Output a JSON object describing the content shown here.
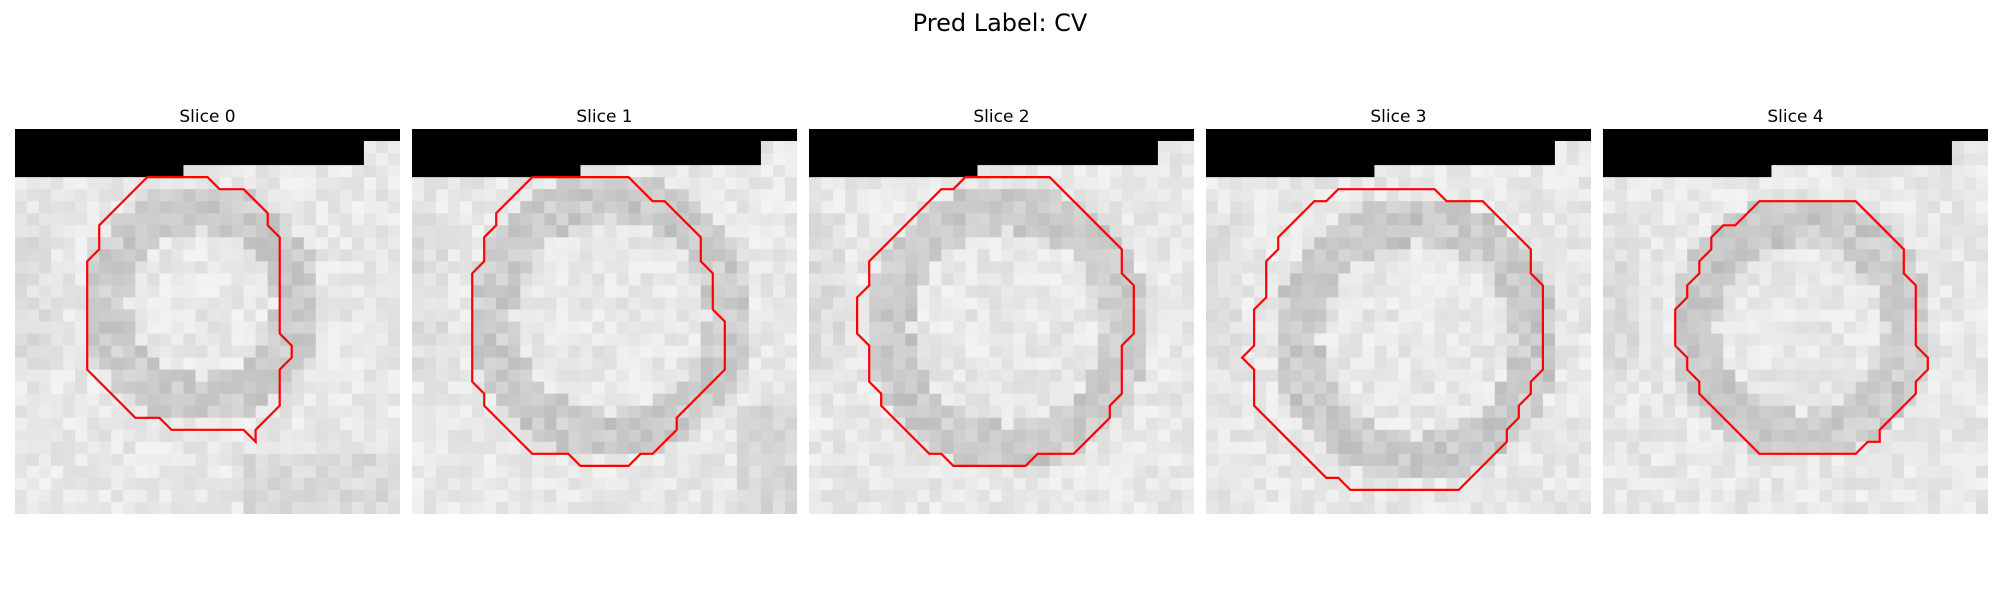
{
  "figure": {
    "title": "Pred Label: CV",
    "outline_color": "#ff0000",
    "slices": [
      {
        "label": "Slice 0"
      },
      {
        "label": "Slice 1"
      },
      {
        "label": "Slice 2"
      },
      {
        "label": "Slice 3"
      },
      {
        "label": "Slice 4"
      }
    ]
  }
}
